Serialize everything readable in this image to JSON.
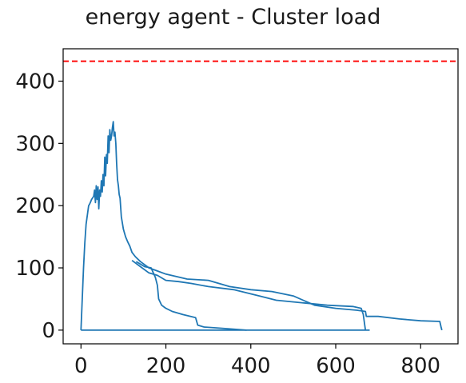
{
  "chart_data": {
    "type": "line",
    "title": "energy agent - Cluster load",
    "xlabel": "",
    "ylabel": "",
    "xlim": [
      -42,
      888
    ],
    "ylim": [
      -22,
      452
    ],
    "xticks": [
      0,
      200,
      400,
      600,
      800
    ],
    "yticks": [
      0,
      100,
      200,
      300,
      400
    ],
    "grid": false,
    "legend": "none",
    "colors": {
      "series": "#1f77b4",
      "threshold": "#ff0000"
    },
    "threshold": {
      "y": 432,
      "style": "dashed"
    },
    "series": [
      {
        "x": [
          0,
          3,
          6,
          9,
          12,
          15,
          18,
          20,
          22,
          25,
          27,
          30,
          32,
          34,
          36,
          38,
          40,
          42,
          44,
          46,
          48,
          50,
          52,
          54,
          56,
          58,
          60,
          62,
          64,
          66,
          68,
          70,
          72,
          74,
          76,
          78,
          80,
          82,
          84,
          86,
          88,
          90,
          92,
          95,
          100,
          105,
          110,
          115,
          120,
          128,
          140,
          160,
          180,
          200,
          250,
          300,
          350,
          400,
          450,
          500,
          550,
          600,
          650,
          670,
          672,
          700,
          750,
          800,
          845,
          848,
          850
        ],
        "y": [
          0,
          50,
          100,
          140,
          170,
          185,
          200,
          202,
          205,
          210,
          212,
          215,
          225,
          205,
          232,
          210,
          230,
          195,
          225,
          215,
          240,
          222,
          250,
          232,
          278,
          248,
          282,
          268,
          312,
          285,
          322,
          305,
          312,
          325,
          335,
          312,
          318,
          300,
          268,
          242,
          232,
          218,
          212,
          182,
          162,
          150,
          142,
          135,
          125,
          118,
          110,
          100,
          95,
          90,
          82,
          80,
          70,
          65,
          62,
          55,
          40,
          35,
          32,
          30,
          22,
          22,
          18,
          15,
          14,
          5,
          0
        ]
      },
      {
        "x": [
          0,
          150,
          300,
          450,
          600,
          680
        ],
        "y": [
          0,
          0,
          0,
          0,
          0,
          0
        ]
      },
      {
        "x": [
          120,
          140,
          160,
          180,
          200,
          230,
          260,
          300,
          360,
          420,
          460,
          520,
          580,
          640,
          660,
          665,
          668,
          670
        ],
        "y": [
          112,
          102,
          92,
          88,
          80,
          78,
          75,
          70,
          65,
          55,
          48,
          44,
          40,
          38,
          35,
          25,
          10,
          0
        ]
      },
      {
        "x": [
          130,
          150,
          165,
          175,
          180,
          183,
          190,
          200,
          215,
          240,
          270,
          275,
          290,
          330,
          390
        ],
        "y": [
          110,
          102,
          100,
          85,
          72,
          50,
          40,
          35,
          30,
          25,
          20,
          8,
          5,
          3,
          0
        ]
      }
    ]
  }
}
